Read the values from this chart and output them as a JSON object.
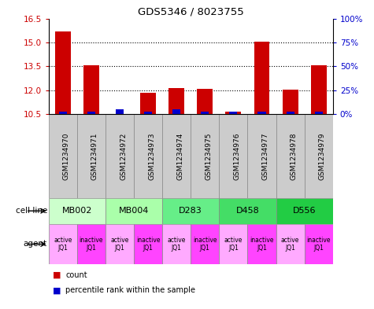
{
  "title": "GDS5346 / 8023755",
  "samples": [
    "GSM1234970",
    "GSM1234971",
    "GSM1234972",
    "GSM1234973",
    "GSM1234974",
    "GSM1234975",
    "GSM1234976",
    "GSM1234977",
    "GSM1234978",
    "GSM1234979"
  ],
  "count_values": [
    15.7,
    13.55,
    10.5,
    11.85,
    12.15,
    12.1,
    10.65,
    15.07,
    12.05,
    13.55
  ],
  "percentile_values": [
    2.5,
    2.5,
    5.0,
    2.5,
    5.0,
    2.5,
    2.5,
    2.5,
    2.5,
    2.5
  ],
  "ylim_left": [
    10.5,
    16.5
  ],
  "ylim_right": [
    0,
    100
  ],
  "yticks_left": [
    10.5,
    12.0,
    13.5,
    15.0,
    16.5
  ],
  "yticks_right": [
    0,
    25,
    50,
    75,
    100
  ],
  "ytick_labels_right": [
    "0%",
    "25%",
    "50%",
    "75%",
    "100%"
  ],
  "cell_lines": [
    {
      "label": "MB002",
      "span": [
        0,
        2
      ],
      "color": "#ccffcc"
    },
    {
      "label": "MB004",
      "span": [
        2,
        4
      ],
      "color": "#aaffaa"
    },
    {
      "label": "D283",
      "span": [
        4,
        6
      ],
      "color": "#66ee88"
    },
    {
      "label": "D458",
      "span": [
        6,
        8
      ],
      "color": "#44dd66"
    },
    {
      "label": "D556",
      "span": [
        8,
        10
      ],
      "color": "#22cc44"
    }
  ],
  "agents": [
    {
      "label": "active\nJQ1",
      "col": 0,
      "color": "#ffaaff"
    },
    {
      "label": "inactive\nJQ1",
      "col": 1,
      "color": "#ff44ff"
    },
    {
      "label": "active\nJQ1",
      "col": 2,
      "color": "#ffaaff"
    },
    {
      "label": "inactive\nJQ1",
      "col": 3,
      "color": "#ff44ff"
    },
    {
      "label": "active\nJQ1",
      "col": 4,
      "color": "#ffaaff"
    },
    {
      "label": "inactive\nJQ1",
      "col": 5,
      "color": "#ff44ff"
    },
    {
      "label": "active\nJQ1",
      "col": 6,
      "color": "#ffaaff"
    },
    {
      "label": "inactive\nJQ1",
      "col": 7,
      "color": "#ff44ff"
    },
    {
      "label": "active\nJQ1",
      "col": 8,
      "color": "#ffaaff"
    },
    {
      "label": "inactive\nJQ1",
      "col": 9,
      "color": "#ff44ff"
    }
  ],
  "bar_color_red": "#cc0000",
  "bar_color_blue": "#0000cc",
  "bar_width": 0.55,
  "blue_bar_width": 0.28,
  "background_color": "#ffffff",
  "tick_color_left": "#cc0000",
  "tick_color_right": "#0000cc",
  "grid_yticks": [
    15.0,
    13.5,
    12.0
  ],
  "sample_box_color": "#cccccc",
  "left_margin_labels": [
    "cell line",
    "agent"
  ],
  "legend_items": [
    {
      "color": "#cc0000",
      "label": "count"
    },
    {
      "color": "#0000cc",
      "label": "percentile rank within the sample"
    }
  ]
}
